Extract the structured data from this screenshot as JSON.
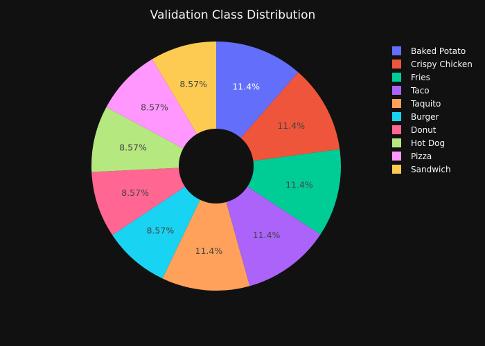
{
  "chart_data": {
    "type": "pie",
    "title": "Validation Class Distribution",
    "hole": 0.3,
    "sort": "descending",
    "direction": "clockwise",
    "legend_position": "right",
    "labels": [
      "Baked Potato",
      "Crispy Chicken",
      "Fries",
      "Taco",
      "Taquito",
      "Burger",
      "Donut",
      "Hot Dog",
      "Pizza",
      "Sandwich"
    ],
    "values": [
      11.4,
      11.4,
      11.4,
      11.4,
      11.4,
      8.57,
      8.57,
      8.57,
      8.57,
      8.57
    ],
    "value_labels": [
      "11.4%",
      "11.4%",
      "11.4%",
      "11.4%",
      "11.4%",
      "8.57%",
      "8.57%",
      "8.57%",
      "8.57%",
      "8.57%"
    ],
    "colors": [
      "#636efa",
      "#EF553B",
      "#00cc96",
      "#ab63fa",
      "#FFA15A",
      "#19d3f3",
      "#FF6692",
      "#B6E880",
      "#FF97FF",
      "#FECB52"
    ]
  }
}
